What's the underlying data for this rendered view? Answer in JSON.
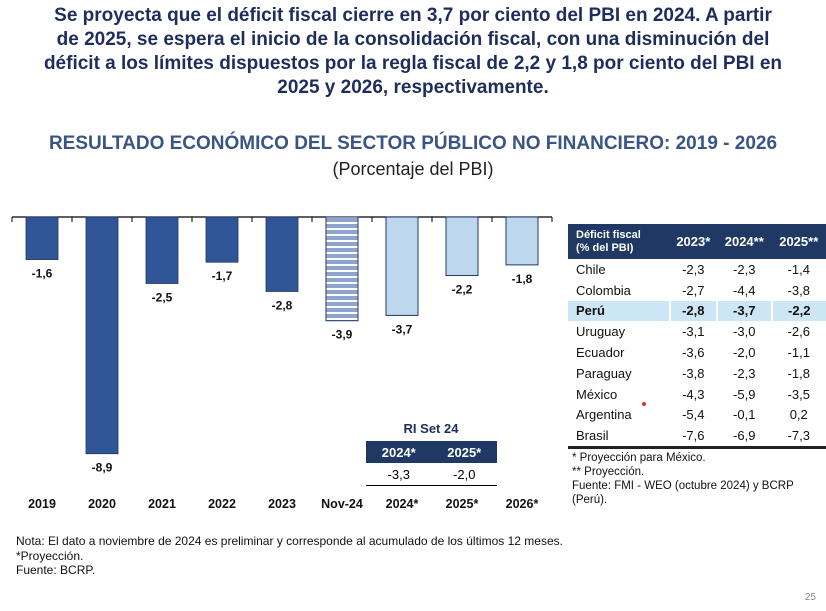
{
  "headline": {
    "lines": [
      "Se proyecta que el déficit fiscal cierre en 3,7 por ciento del PBI en 2024. A partir",
      "de 2025, se espera el inicio de la consolidación fiscal, con una disminución del",
      "déficit a los límites dispuestos por la regla fiscal de 2,2 y 1,8 por ciento del PBI en",
      "2025 y 2026, respectivamente."
    ]
  },
  "chart_data": {
    "type": "bar",
    "title": "RESULTADO ECONÓMICO DEL SECTOR PÚBLICO NO FINANCIERO:  2019 - 2026",
    "subtitle": "(Porcentaje del PBI)",
    "xlabel": "",
    "ylabel": "",
    "ylim": [
      -9.5,
      0
    ],
    "grid": false,
    "categories": [
      "2019",
      "2020",
      "2021",
      "2022",
      "2023",
      "Nov-24",
      "2024*",
      "2025*",
      "2026*"
    ],
    "values": [
      -1.6,
      -8.9,
      -2.5,
      -1.7,
      -2.8,
      -3.9,
      -3.7,
      -2.2,
      -1.8
    ],
    "data_labels": [
      "-1,6",
      "-8,9",
      "-2,5",
      "-1,7",
      "-2,8",
      "-3,9",
      "-3,7",
      "-2,2",
      "-1,8"
    ],
    "bar_styles": [
      "actual",
      "actual",
      "actual",
      "actual",
      "actual",
      "preliminary",
      "projection",
      "projection",
      "projection"
    ],
    "colors": {
      "actual": "#2f5597",
      "preliminary_stripe": "#8fa5cf",
      "projection": "#bdd7ee",
      "outline": "#1f3864"
    }
  },
  "ri_table": {
    "title": "RI Set 24",
    "headers": [
      "2024*",
      "2025*"
    ],
    "values": [
      "-3,3",
      "-2,0"
    ]
  },
  "peer_table": {
    "header": [
      "Déficit fiscal",
      "(% del PBI)"
    ],
    "columns": [
      "2023*",
      "2024**",
      "2025**"
    ],
    "rows": [
      {
        "country": "Chile",
        "values": [
          "-2,3",
          "-2,3",
          "-1,4"
        ]
      },
      {
        "country": "Colombia",
        "values": [
          "-2,7",
          "-4,4",
          "-3,8"
        ]
      },
      {
        "country": "Perú",
        "values": [
          "-2,8",
          "-3,7",
          "-2,2"
        ],
        "highlight": true
      },
      {
        "country": "Uruguay",
        "values": [
          "-3,1",
          "-3,0",
          "-2,6"
        ]
      },
      {
        "country": "Ecuador",
        "values": [
          "-3,6",
          "-2,0",
          "-1,1"
        ]
      },
      {
        "country": "Paraguay",
        "values": [
          "-3,8",
          "-2,3",
          "-1,8"
        ]
      },
      {
        "country": "México",
        "values": [
          "-4,3",
          "-5,9",
          "-3,5"
        ]
      },
      {
        "country": "Argentina",
        "values": [
          "-5,4",
          "-0,1",
          "0,2"
        ]
      },
      {
        "country": "Brasil",
        "values": [
          "-7,6",
          "-6,9",
          "-7,3"
        ]
      }
    ],
    "notes": [
      "* Proyección para México.",
      "** Proyección.",
      "Fuente: FMI - WEO (octubre 2024) y BCRP",
      "(Perú)."
    ]
  },
  "footnotes": [
    "Nota: El dato a noviembre de 2024 es preliminar y corresponde al acumulado de los últimos 12 meses.",
    "*Proyección.",
    "Fuente: BCRP."
  ],
  "page_number": "25"
}
